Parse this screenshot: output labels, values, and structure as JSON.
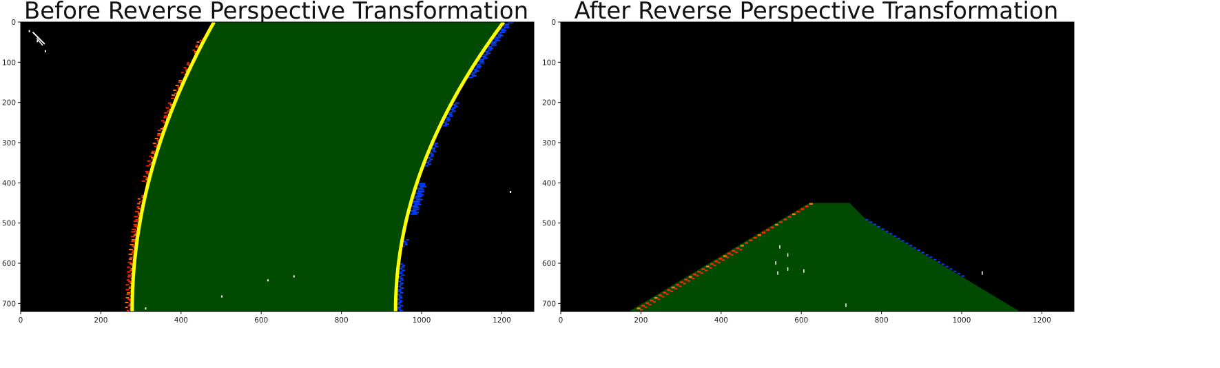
{
  "panels": [
    {
      "id": "before",
      "title": "Before Reverse Perspective Transformation",
      "xticks": [
        0,
        200,
        400,
        600,
        800,
        1000,
        1200
      ],
      "yticks": [
        0,
        100,
        200,
        300,
        400,
        500,
        600,
        700
      ]
    },
    {
      "id": "after",
      "title": "After Reverse Perspective Transformation",
      "xticks": [
        0,
        200,
        400,
        600,
        800,
        1000,
        1200
      ],
      "yticks": [
        0,
        100,
        200,
        300,
        400,
        500,
        600,
        700
      ]
    }
  ],
  "colors": {
    "lane_fill": "#004b00",
    "left_lane_pixels": "#ff2600",
    "right_lane_pixels": "#0040ff",
    "fit_line": "#ffff00",
    "background": "#000000"
  }
}
